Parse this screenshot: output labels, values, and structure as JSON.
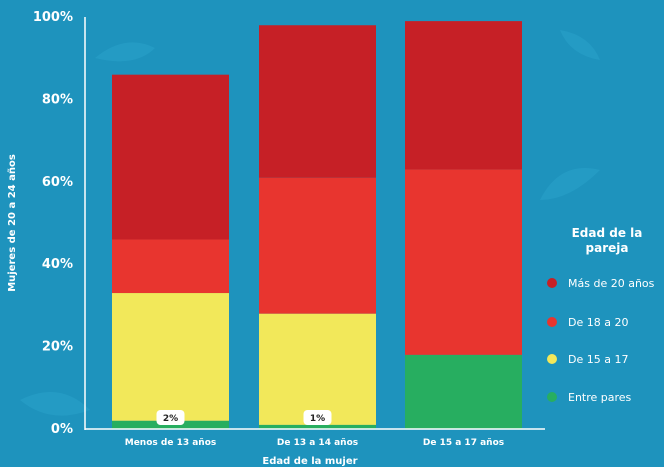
{
  "chart_data": {
    "type": "bar",
    "stacked": true,
    "categories": [
      "Menos de 13 años",
      "De 13 a 14 años",
      "De 15 a 17 años"
    ],
    "series": [
      {
        "name": "Entre pares",
        "color": "#27ae60",
        "values": [
          2,
          1,
          18
        ]
      },
      {
        "name": "De 15 a 17",
        "color": "#f2e85a",
        "values": [
          31,
          27,
          0
        ]
      },
      {
        "name": "De 18 a 20",
        "color": "#e8352f",
        "values": [
          13,
          33,
          45
        ]
      },
      {
        "name": "Más de 20 años",
        "color": "#c62026",
        "values": [
          40,
          37,
          36
        ]
      }
    ],
    "data_labels": [
      {
        "category_index": 0,
        "text": "2%"
      },
      {
        "category_index": 1,
        "text": "1%"
      }
    ],
    "xlabel": "Edad de la mujer",
    "ylabel": "Mujeres de 20 a 24 años",
    "ylim": [
      0,
      100
    ],
    "yticks": [
      "0%",
      "20%",
      "40%",
      "60%",
      "80%",
      "100%"
    ],
    "ytick_values": [
      0,
      20,
      40,
      60,
      80,
      100
    ],
    "legend": {
      "title_lines": [
        "Edad de la",
        "pareja"
      ],
      "placement": "right",
      "items": [
        "Más de 20 años",
        "De 18 a 20",
        "De 15 a 17",
        "Entre pares"
      ],
      "colors": [
        "#c62026",
        "#e8352f",
        "#f2e85a",
        "#27ae60"
      ]
    },
    "grid": false,
    "background": "#1e93bd"
  }
}
